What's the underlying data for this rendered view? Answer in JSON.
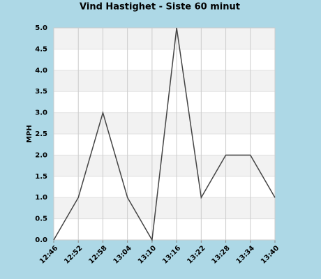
{
  "chart_data": {
    "type": "line",
    "title": "Vind Hastighet - Siste 60 minut",
    "y_label": "MPH",
    "categories": [
      "12:46",
      "12:52",
      "12:58",
      "13:04",
      "13:10",
      "13:16",
      "13:22",
      "13:28",
      "13:34",
      "13:40"
    ],
    "values": [
      0,
      1,
      3,
      1,
      0,
      5,
      1,
      2,
      2,
      1
    ],
    "color": "#444444",
    "ylim": [
      0,
      5
    ],
    "yticks": [
      {
        "value": 0,
        "label": "0.0"
      },
      0.5,
      {
        "value": 1,
        "label": "1.0"
      },
      1.5,
      {
        "value": 2,
        "label": "2.0"
      },
      2.5,
      {
        "value": 3,
        "label": "3.0"
      },
      3.5,
      {
        "value": 4,
        "label": "4.0"
      },
      4.5,
      {
        "value": 5,
        "label": "5.0"
      }
    ],
    "grid": true
  }
}
